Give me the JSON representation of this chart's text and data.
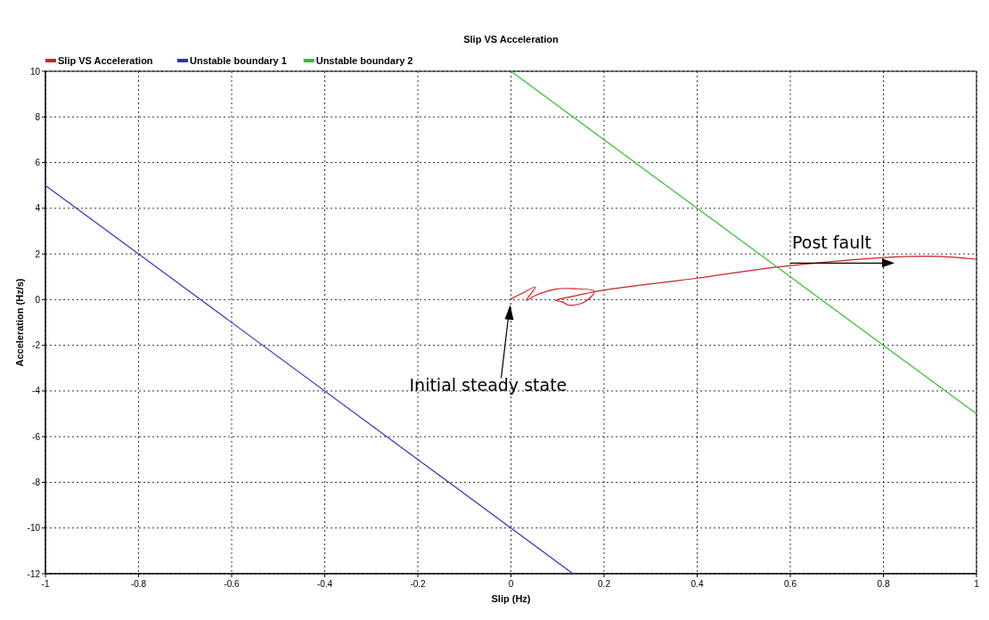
{
  "chart_data": {
    "type": "line",
    "title": "Slip VS Acceleration",
    "xlabel": "Slip (Hz)",
    "ylabel": "Acceleration (Hz/s)",
    "xlim": [
      -1,
      1
    ],
    "xticks": [
      -1,
      -0.8,
      -0.6,
      -0.4,
      -0.2,
      0,
      0.2,
      0.4,
      0.6,
      0.8,
      1
    ],
    "ylim": [
      -12,
      10
    ],
    "yticks": [
      -12,
      -10,
      -8,
      -6,
      -4,
      -2,
      0,
      2,
      4,
      6,
      8,
      10
    ],
    "grid": true,
    "legend": "top left",
    "marker": "none",
    "line_style": "solid",
    "series": [
      {
        "name": "Slip VS Acceleration",
        "color": "#d02020",
        "x": [
          0,
          0.021,
          0.052,
          0.033,
          0.052,
          0.096,
          0.137,
          0.179,
          0.158,
          0.124,
          0.11,
          0.096,
          0.107,
          0.158,
          0.199,
          0.4,
          0.575,
          0.8,
          0.855,
          0.923,
          1.0
        ],
        "values": [
          0.04,
          0.25,
          0.55,
          -0.03,
          0.18,
          0.46,
          0.48,
          0.36,
          -0.1,
          -0.24,
          -0.1,
          -0.03,
          0.04,
          0.25,
          0.42,
          0.94,
          1.43,
          1.84,
          1.89,
          1.89,
          1.77
        ]
      },
      {
        "name": "Unstable boundary 1",
        "color": "#3030c0",
        "x": [
          -1,
          0.133
        ],
        "values": [
          5,
          -12
        ]
      },
      {
        "name": "Unstable boundary 2",
        "color": "#30c030",
        "x": [
          0,
          1
        ],
        "values": [
          10,
          -5
        ]
      }
    ],
    "annotations": [
      "Post fault",
      "Initial steady state"
    ]
  }
}
